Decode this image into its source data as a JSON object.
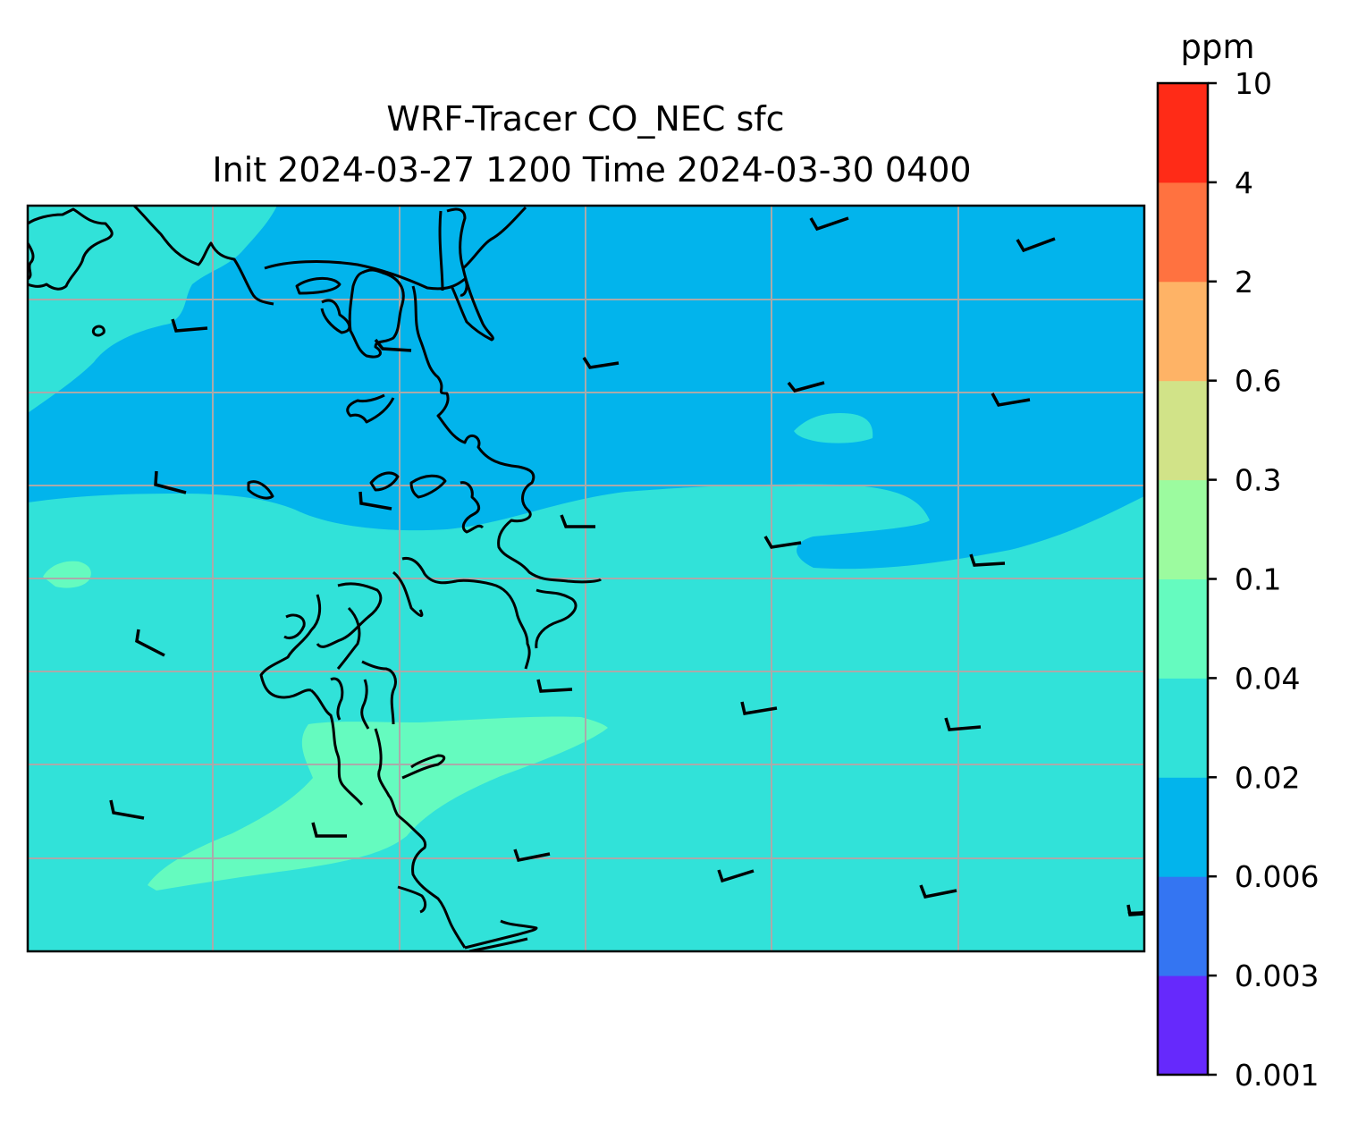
{
  "figure": {
    "title_line1": "WRF-Tracer CO_NEC sfc",
    "title_line2": "Init 2024-03-27 1200 Time 2024-03-30 0400"
  },
  "colorbar": {
    "unit": "ppm",
    "levels": [
      "0.001",
      "0.003",
      "0.006",
      "0.02",
      "0.04",
      "0.1",
      "0.3",
      "0.6",
      "2",
      "4",
      "10"
    ],
    "colors": [
      "#6629fc",
      "#3475f2",
      "#02b4ec",
      "#31e2d9",
      "#65fbbf",
      "#9cfb9f",
      "#d1e388",
      "#feb366",
      "#ff7240",
      "#ff2b17"
    ]
  },
  "map": {
    "background_level_color": "#31e2d9",
    "north_region_color": "#02b4ec",
    "plume_color": "#65fbbf",
    "coastline_color": "#000000",
    "gridline_color": "#aaaaaa",
    "wind_barb_color": "#000000"
  }
}
